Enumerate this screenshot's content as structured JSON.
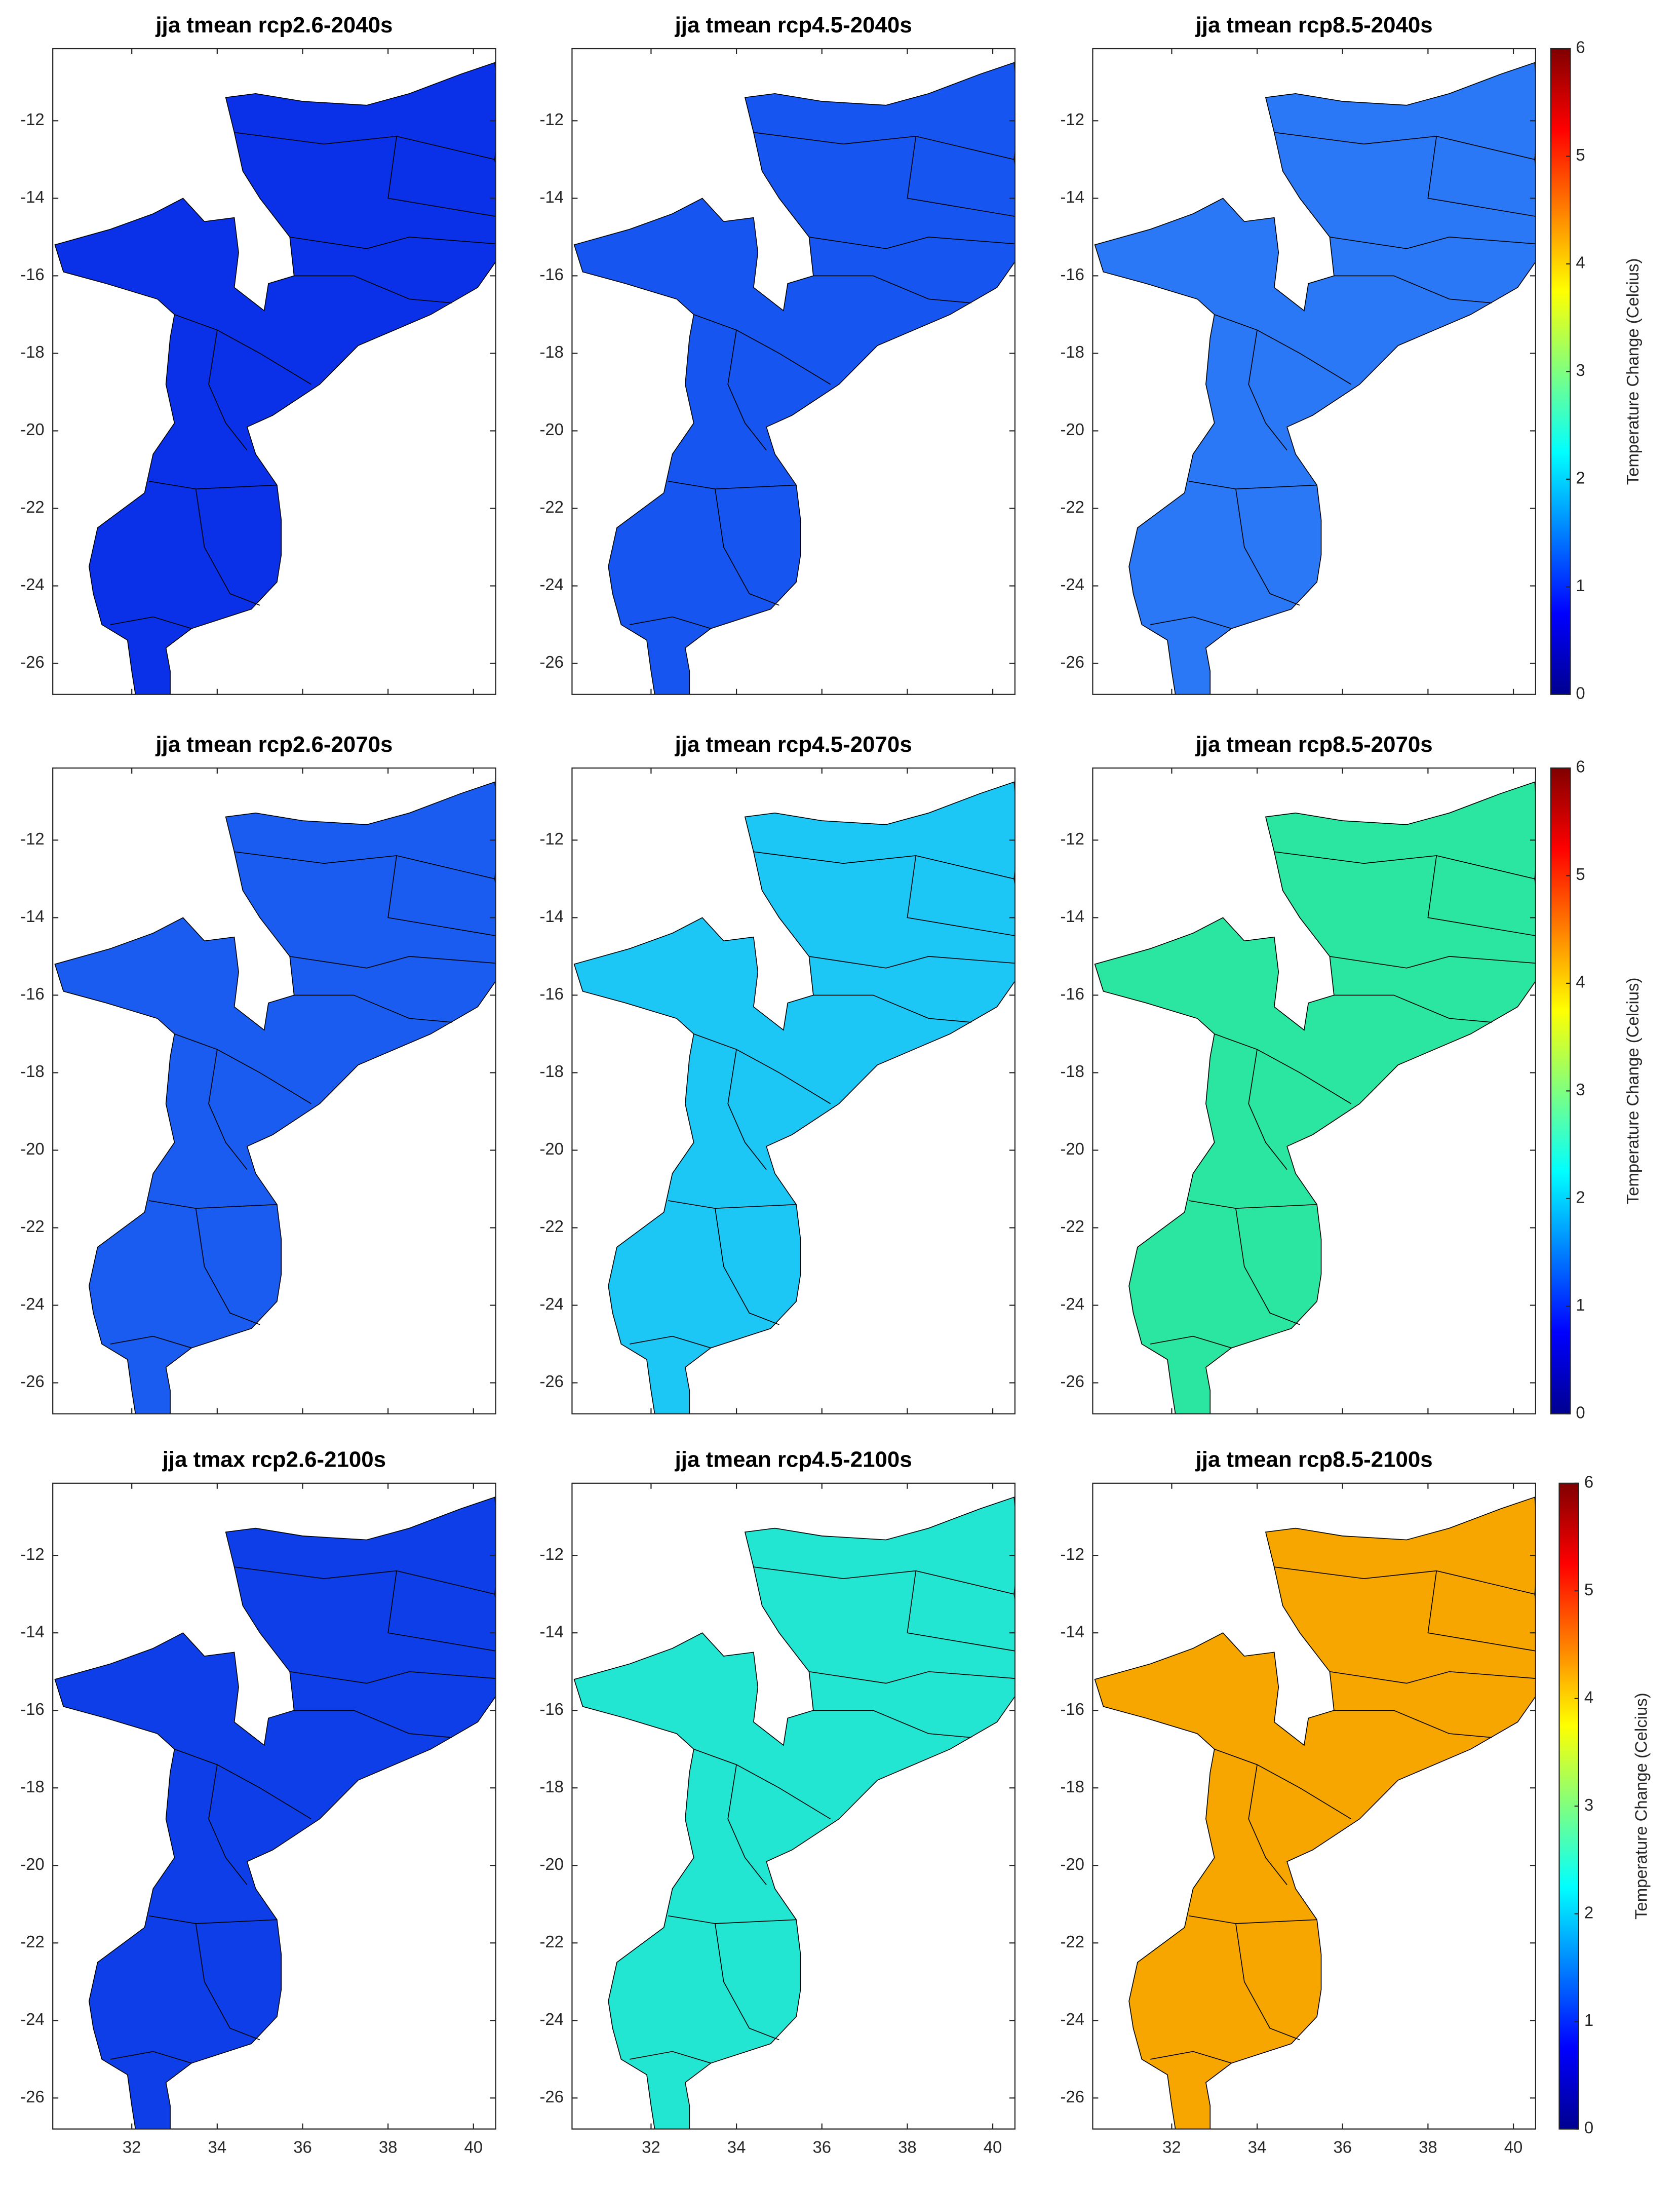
{
  "panels": [
    {
      "title": "jja tmean rcp2.6-2040s",
      "fill": "#0a30e8"
    },
    {
      "title": "jja tmean rcp4.5-2040s",
      "fill": "#1655f0"
    },
    {
      "title": "jja tmean rcp8.5-2040s",
      "fill": "#2a78f5"
    },
    {
      "title": "jja tmean rcp2.6-2070s",
      "fill": "#1a5cf0"
    },
    {
      "title": "jja tmean rcp4.5-2070s",
      "fill": "#1cc6f5"
    },
    {
      "title": "jja tmean rcp8.5-2070s",
      "fill": "#2ae6a0"
    },
    {
      "title": "jja tmax rcp2.6-2100s",
      "fill": "#0e3ee8"
    },
    {
      "title": "jja tmean rcp4.5-2100s",
      "fill": "#22e6d2"
    },
    {
      "title": "jja tmean rcp8.5-2100s",
      "fill": "#f7a600"
    }
  ],
  "axes": {
    "xlim": [
      30.15,
      40.52
    ],
    "ylim": [
      -26.8,
      -10.14
    ],
    "xticks": [
      32,
      34,
      36,
      38,
      40
    ],
    "yticks": [
      -26,
      -24,
      -22,
      -20,
      -18,
      -16,
      -14,
      -12
    ]
  },
  "colorbar": {
    "label": "Temperature Change (Celcius)",
    "colormap": "jet",
    "lim": [
      0,
      6
    ],
    "ticks": [
      0,
      1,
      2,
      3,
      4,
      5,
      6
    ]
  }
}
